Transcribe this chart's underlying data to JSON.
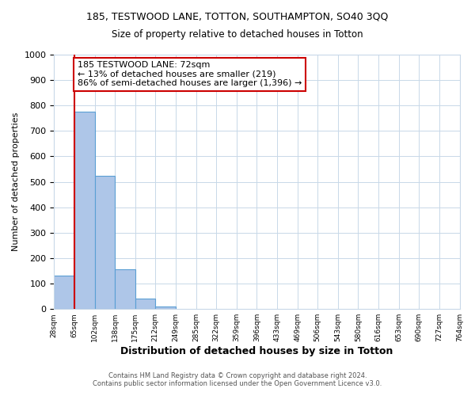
{
  "title": "185, TESTWOOD LANE, TOTTON, SOUTHAMPTON, SO40 3QQ",
  "subtitle": "Size of property relative to detached houses in Totton",
  "xlabel": "Distribution of detached houses by size in Totton",
  "ylabel": "Number of detached properties",
  "bin_labels": [
    "28sqm",
    "65sqm",
    "102sqm",
    "138sqm",
    "175sqm",
    "212sqm",
    "249sqm",
    "285sqm",
    "322sqm",
    "359sqm",
    "396sqm",
    "433sqm",
    "469sqm",
    "506sqm",
    "543sqm",
    "580sqm",
    "616sqm",
    "653sqm",
    "690sqm",
    "727sqm",
    "764sqm"
  ],
  "bin_values": [
    130,
    775,
    525,
    155,
    40,
    10,
    0,
    0,
    0,
    0,
    0,
    0,
    0,
    0,
    0,
    0,
    0,
    0,
    0,
    0
  ],
  "bar_color": "#aec6e8",
  "bar_edge_color": "#5a9fd4",
  "property_line_color": "#cc0000",
  "annotation_line1": "185 TESTWOOD LANE: 72sqm",
  "annotation_line2": "← 13% of detached houses are smaller (219)",
  "annotation_line3": "86% of semi-detached houses are larger (1,396) →",
  "annotation_box_color": "#ffffff",
  "annotation_box_edge_color": "#cc0000",
  "ylim": [
    0,
    1000
  ],
  "yticks": [
    0,
    100,
    200,
    300,
    400,
    500,
    600,
    700,
    800,
    900,
    1000
  ],
  "footer_line1": "Contains HM Land Registry data © Crown copyright and database right 2024.",
  "footer_line2": "Contains public sector information licensed under the Open Government Licence v3.0.",
  "background_color": "#ffffff",
  "grid_color": "#c8d8e8"
}
